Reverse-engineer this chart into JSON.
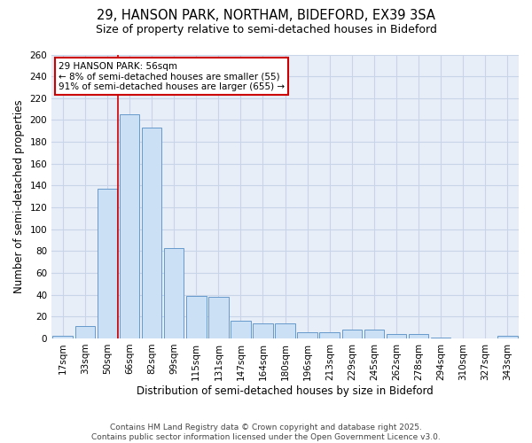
{
  "title_line1": "29, HANSON PARK, NORTHAM, BIDEFORD, EX39 3SA",
  "title_line2": "Size of property relative to semi-detached houses in Bideford",
  "xlabel": "Distribution of semi-detached houses by size in Bideford",
  "ylabel": "Number of semi-detached properties",
  "categories": [
    "17sqm",
    "33sqm",
    "50sqm",
    "66sqm",
    "82sqm",
    "99sqm",
    "115sqm",
    "131sqm",
    "147sqm",
    "164sqm",
    "180sqm",
    "196sqm",
    "213sqm",
    "229sqm",
    "245sqm",
    "262sqm",
    "278sqm",
    "294sqm",
    "310sqm",
    "327sqm",
    "343sqm"
  ],
  "values": [
    2,
    11,
    137,
    205,
    193,
    83,
    39,
    38,
    16,
    14,
    14,
    6,
    6,
    8,
    8,
    4,
    4,
    1,
    0,
    0,
    2
  ],
  "bar_color": "#cce0f5",
  "bar_edge_color": "#6699cc",
  "red_line_x": 2.5,
  "annotation_title": "29 HANSON PARK: 56sqm",
  "annotation_line1": "← 8% of semi-detached houses are smaller (55)",
  "annotation_line2": "91% of semi-detached houses are larger (655) →",
  "annotation_box_color": "#ffffff",
  "annotation_box_edge": "#cc0000",
  "red_line_color": "#cc0000",
  "ylim": [
    0,
    260
  ],
  "yticks": [
    0,
    20,
    40,
    60,
    80,
    100,
    120,
    140,
    160,
    180,
    200,
    220,
    240,
    260
  ],
  "grid_color": "#c8d4e8",
  "background_color": "#e8eef8",
  "footer_line1": "Contains HM Land Registry data © Crown copyright and database right 2025.",
  "footer_line2": "Contains public sector information licensed under the Open Government Licence v3.0.",
  "title_fontsize": 10.5,
  "subtitle_fontsize": 9,
  "tick_fontsize": 7.5,
  "ylabel_fontsize": 8.5,
  "xlabel_fontsize": 8.5,
  "annotation_fontsize": 7.5,
  "footer_fontsize": 6.5
}
